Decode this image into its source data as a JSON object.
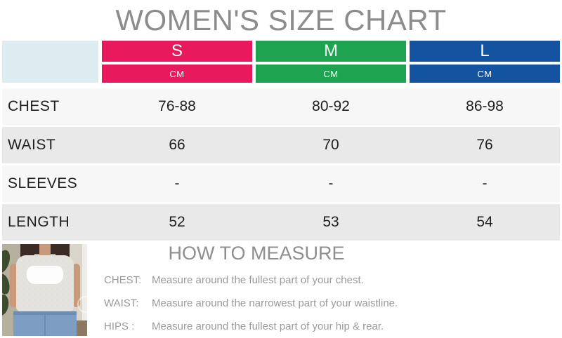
{
  "title": "WOMEN'S SIZE CHART",
  "colors": {
    "size_s": "#e8195c",
    "size_m": "#1ea350",
    "size_l": "#14539f",
    "corner_cell": "#dcecf0",
    "row_light": "#f7f7f7",
    "row_dark": "#e9e9e9",
    "title_gray": "#8c8c8c"
  },
  "chart_data": {
    "type": "table",
    "title": "WOMEN'S SIZE CHART",
    "unit": "CM",
    "columns": [
      "S",
      "M",
      "L"
    ],
    "rows": [
      {
        "label": "CHEST",
        "values": [
          "76-88",
          "80-92",
          "86-98"
        ]
      },
      {
        "label": "WAIST",
        "values": [
          "66",
          "70",
          "76"
        ]
      },
      {
        "label": "SLEEVES",
        "values": [
          "-",
          "-",
          "-"
        ]
      },
      {
        "label": "LENGTH",
        "values": [
          "52",
          "53",
          "54"
        ]
      }
    ]
  },
  "table": {
    "sizes": [
      {
        "label": "S",
        "unit": "CM"
      },
      {
        "label": "M",
        "unit": "CM"
      },
      {
        "label": "L",
        "unit": "CM"
      }
    ],
    "rows": [
      {
        "label": "CHEST",
        "values": [
          "76-88",
          "80-92",
          "86-98"
        ]
      },
      {
        "label": "WAIST",
        "values": [
          "66",
          "70",
          "76"
        ]
      },
      {
        "label": "SLEEVES",
        "values": [
          "-",
          "-",
          "-"
        ]
      },
      {
        "label": "LENGTH",
        "values": [
          "52",
          "53",
          "54"
        ]
      }
    ]
  },
  "measure": {
    "title": "HOW TO MEASURE",
    "items": [
      {
        "label": "CHEST:",
        "text": "Measure around the fullest part of your chest."
      },
      {
        "label": "WAIST:",
        "text": "Measure around the narrowest part of your waistline."
      },
      {
        "label": "HIPS :",
        "text": "Measure around the fullest part of your hip & rear."
      }
    ]
  },
  "photo": {
    "alt": "model wearing white lace off-shoulder top and jeans"
  }
}
